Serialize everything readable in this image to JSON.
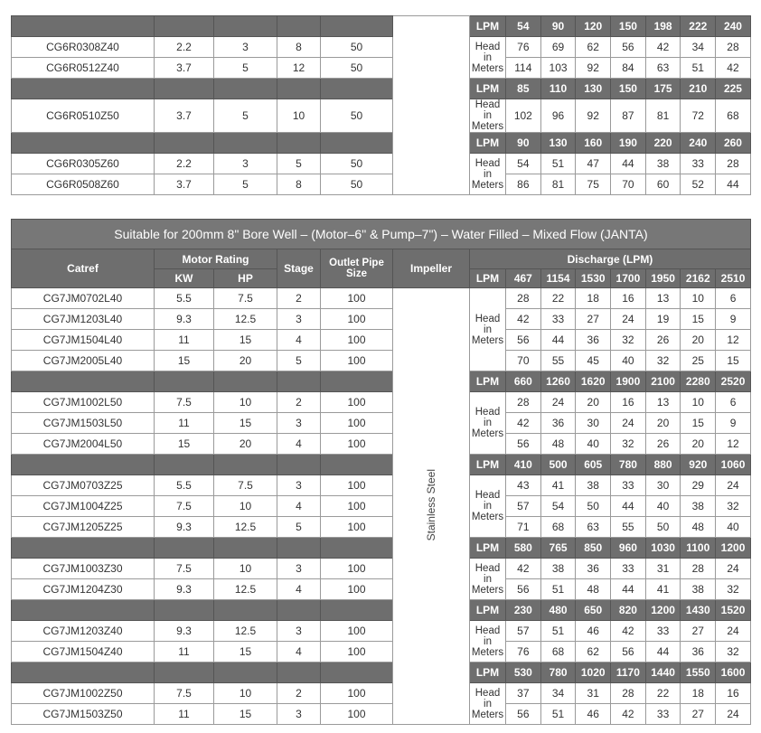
{
  "colors": {
    "header_bg": "#6e6e6e",
    "header_text": "#ffffff",
    "border": "#9a9a9a"
  },
  "head_label": "Head in Meters",
  "lpm_label": "LPM",
  "top_table": {
    "groups": [
      {
        "lpm": [
          "54",
          "90",
          "120",
          "150",
          "198",
          "222",
          "240"
        ],
        "pumps": [
          {
            "catref": "CG6R0308Z40",
            "kw": "2.2",
            "hp": "3",
            "stage": "8",
            "outlet": "50",
            "head": [
              "76",
              "69",
              "62",
              "56",
              "42",
              "34",
              "28"
            ]
          },
          {
            "catref": "CG6R0512Z40",
            "kw": "3.7",
            "hp": "5",
            "stage": "12",
            "outlet": "50",
            "head": [
              "114",
              "103",
              "92",
              "84",
              "63",
              "51",
              "42"
            ]
          }
        ]
      },
      {
        "lpm": [
          "85",
          "110",
          "130",
          "150",
          "175",
          "210",
          "225"
        ],
        "pumps": [
          {
            "catref": "CG6R0510Z50",
            "kw": "3.7",
            "hp": "5",
            "stage": "10",
            "outlet": "50",
            "head": [
              "102",
              "96",
              "92",
              "87",
              "81",
              "72",
              "68"
            ],
            "tall": true
          }
        ]
      },
      {
        "lpm": [
          "90",
          "130",
          "160",
          "190",
          "220",
          "240",
          "260"
        ],
        "pumps": [
          {
            "catref": "CG6R0305Z60",
            "kw": "2.2",
            "hp": "3",
            "stage": "5",
            "outlet": "50",
            "head": [
              "54",
              "51",
              "47",
              "44",
              "38",
              "33",
              "28"
            ]
          },
          {
            "catref": "CG6R0508Z60",
            "kw": "3.7",
            "hp": "5",
            "stage": "8",
            "outlet": "50",
            "head": [
              "86",
              "81",
              "75",
              "70",
              "60",
              "52",
              "44"
            ]
          }
        ]
      }
    ]
  },
  "bottom_table": {
    "title": "Suitable for 200mm 8\" Bore Well – (Motor–6\" & Pump–7\") – Water Filled – Mixed Flow (JANTA)",
    "headers": {
      "catref": "Catref",
      "motor_rating": "Motor Rating",
      "kw": "KW",
      "hp": "HP",
      "stage": "Stage",
      "outlet": "Outlet Pipe Size",
      "impeller": "Impeller",
      "discharge": "Discharge (LPM)"
    },
    "impeller_value": "Stainless Steel",
    "groups": [
      {
        "lpm": [
          "467",
          "1154",
          "1530",
          "1700",
          "1950",
          "2162",
          "2510"
        ],
        "pumps": [
          {
            "catref": "CG7JM0702L40",
            "kw": "5.5",
            "hp": "7.5",
            "stage": "2",
            "outlet": "100",
            "head": [
              "28",
              "22",
              "18",
              "16",
              "13",
              "10",
              "6"
            ]
          },
          {
            "catref": "CG7JM1203L40",
            "kw": "9.3",
            "hp": "12.5",
            "stage": "3",
            "outlet": "100",
            "head": [
              "42",
              "33",
              "27",
              "24",
              "19",
              "15",
              "9"
            ]
          },
          {
            "catref": "CG7JM1504L40",
            "kw": "11",
            "hp": "15",
            "stage": "4",
            "outlet": "100",
            "head": [
              "56",
              "44",
              "36",
              "32",
              "26",
              "20",
              "12"
            ]
          },
          {
            "catref": "CG7JM2005L40",
            "kw": "15",
            "hp": "20",
            "stage": "5",
            "outlet": "100",
            "head": [
              "70",
              "55",
              "45",
              "40",
              "32",
              "25",
              "15"
            ]
          }
        ]
      },
      {
        "lpm": [
          "660",
          "1260",
          "1620",
          "1900",
          "2100",
          "2280",
          "2520"
        ],
        "pumps": [
          {
            "catref": "CG7JM1002L50",
            "kw": "7.5",
            "hp": "10",
            "stage": "2",
            "outlet": "100",
            "head": [
              "28",
              "24",
              "20",
              "16",
              "13",
              "10",
              "6"
            ]
          },
          {
            "catref": "CG7JM1503L50",
            "kw": "11",
            "hp": "15",
            "stage": "3",
            "outlet": "100",
            "head": [
              "42",
              "36",
              "30",
              "24",
              "20",
              "15",
              "9"
            ]
          },
          {
            "catref": "CG7JM2004L50",
            "kw": "15",
            "hp": "20",
            "stage": "4",
            "outlet": "100",
            "head": [
              "56",
              "48",
              "40",
              "32",
              "26",
              "20",
              "12"
            ]
          }
        ]
      },
      {
        "lpm": [
          "410",
          "500",
          "605",
          "780",
          "880",
          "920",
          "1060"
        ],
        "pumps": [
          {
            "catref": "CG7JM0703Z25",
            "kw": "5.5",
            "hp": "7.5",
            "stage": "3",
            "outlet": "100",
            "head": [
              "43",
              "41",
              "38",
              "33",
              "30",
              "29",
              "24"
            ]
          },
          {
            "catref": "CG7JM1004Z25",
            "kw": "7.5",
            "hp": "10",
            "stage": "4",
            "outlet": "100",
            "head": [
              "57",
              "54",
              "50",
              "44",
              "40",
              "38",
              "32"
            ]
          },
          {
            "catref": "CG7JM1205Z25",
            "kw": "9.3",
            "hp": "12.5",
            "stage": "5",
            "outlet": "100",
            "head": [
              "71",
              "68",
              "63",
              "55",
              "50",
              "48",
              "40"
            ]
          }
        ]
      },
      {
        "lpm": [
          "580",
          "765",
          "850",
          "960",
          "1030",
          "1100",
          "1200"
        ],
        "pumps": [
          {
            "catref": "CG7JM1003Z30",
            "kw": "7.5",
            "hp": "10",
            "stage": "3",
            "outlet": "100",
            "head": [
              "42",
              "38",
              "36",
              "33",
              "31",
              "28",
              "24"
            ]
          },
          {
            "catref": "CG7JM1204Z30",
            "kw": "9.3",
            "hp": "12.5",
            "stage": "4",
            "outlet": "100",
            "head": [
              "56",
              "51",
              "48",
              "44",
              "41",
              "38",
              "32"
            ]
          }
        ]
      },
      {
        "lpm": [
          "230",
          "480",
          "650",
          "820",
          "1200",
          "1430",
          "1520"
        ],
        "pumps": [
          {
            "catref": "CG7JM1203Z40",
            "kw": "9.3",
            "hp": "12.5",
            "stage": "3",
            "outlet": "100",
            "head": [
              "57",
              "51",
              "46",
              "42",
              "33",
              "27",
              "24"
            ]
          },
          {
            "catref": "CG7JM1504Z40",
            "kw": "11",
            "hp": "15",
            "stage": "4",
            "outlet": "100",
            "head": [
              "76",
              "68",
              "62",
              "56",
              "44",
              "36",
              "32"
            ]
          }
        ]
      },
      {
        "lpm": [
          "530",
          "780",
          "1020",
          "1170",
          "1440",
          "1550",
          "1600"
        ],
        "pumps": [
          {
            "catref": "CG7JM1002Z50",
            "kw": "7.5",
            "hp": "10",
            "stage": "2",
            "outlet": "100",
            "head": [
              "37",
              "34",
              "31",
              "28",
              "22",
              "18",
              "16"
            ]
          },
          {
            "catref": "CG7JM1503Z50",
            "kw": "11",
            "hp": "15",
            "stage": "3",
            "outlet": "100",
            "head": [
              "56",
              "51",
              "46",
              "42",
              "33",
              "27",
              "24"
            ]
          }
        ]
      }
    ]
  }
}
